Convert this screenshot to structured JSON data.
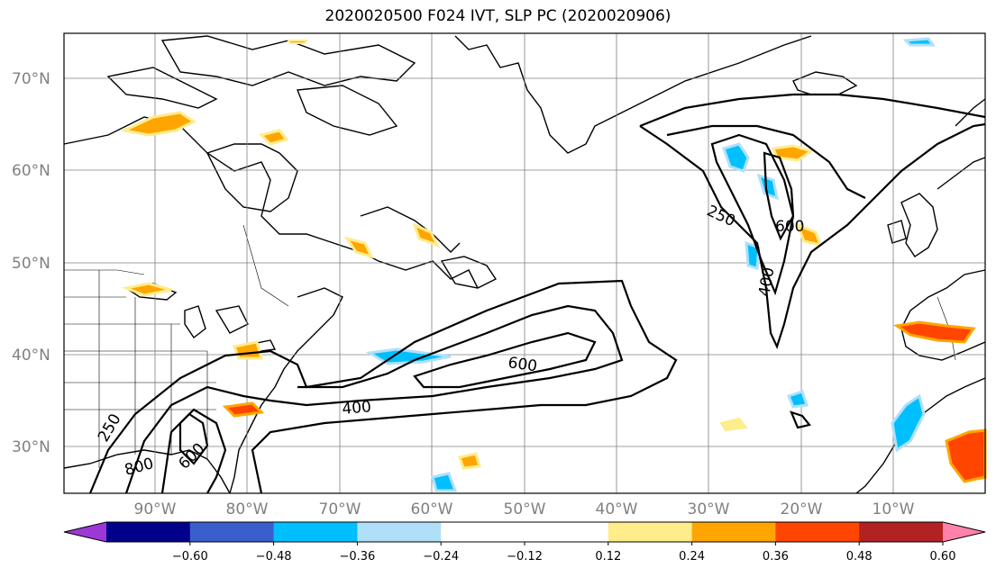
{
  "title": "2020020500 F024 IVT, SLP PC (2020020906)",
  "lat_labels": [
    "70°N",
    "60°N",
    "50°N",
    "40°N",
    "30°N"
  ],
  "lon_labels": [
    "90°W",
    "80°W",
    "70°W",
    "60°W",
    "50°W",
    "40°W",
    "30°W",
    "20°W",
    "10°W"
  ],
  "contour_labels": [
    "250",
    "600",
    "600",
    "400",
    "250",
    "800",
    "600",
    "400"
  ],
  "colorbar": {
    "colors": [
      "#9c39d6",
      "#00008b",
      "#3a5fcd",
      "#00bfff",
      "#b0e0f8",
      "#ffffff",
      "#ffffff",
      "#ffec8b",
      "#ffa500",
      "#ff4500",
      "#b22222",
      "#ff82ab"
    ],
    "ticks": [
      "−0.60",
      "−0.48",
      "−0.36",
      "−0.24",
      "−0.12",
      "0.12",
      "0.24",
      "0.36",
      "0.48",
      "0.60"
    ]
  }
}
